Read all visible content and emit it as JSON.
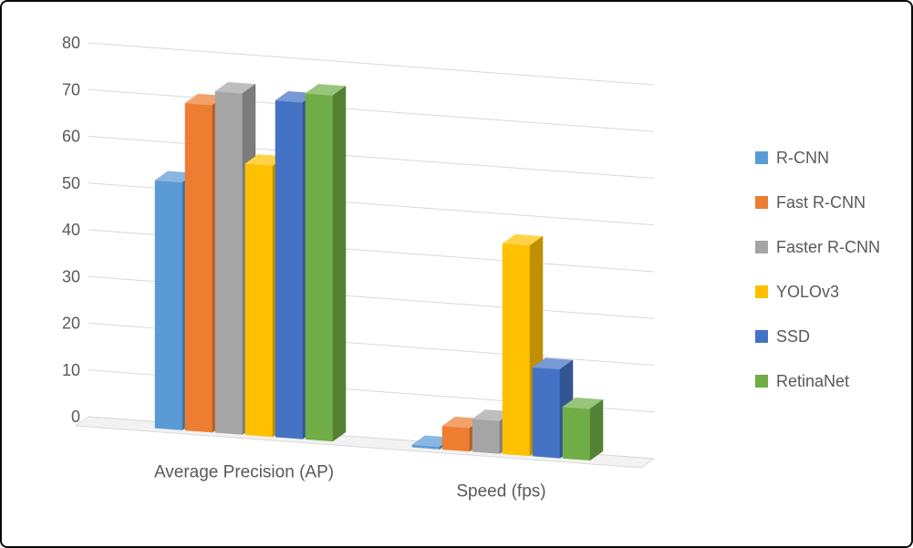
{
  "chart_data": {
    "type": "bar",
    "variant": "3d-clustered-column",
    "title": "",
    "categories": [
      "Average Precision (AP)",
      "Speed (fps)"
    ],
    "series": [
      {
        "name": "R-CNN",
        "color": "#5B9BD5",
        "values": [
          53,
          0.5
        ]
      },
      {
        "name": "Fast R-CNN",
        "color": "#ED7D31",
        "values": [
          70,
          5
        ]
      },
      {
        "name": "Faster R-CNN",
        "color": "#A5A5A5",
        "values": [
          73,
          7
        ]
      },
      {
        "name": "YOLOv3",
        "color": "#FFC000",
        "values": [
          58,
          45
        ]
      },
      {
        "name": "SSD",
        "color": "#4472C4",
        "values": [
          72,
          19
        ]
      },
      {
        "name": "RetinaNet",
        "color": "#70AD47",
        "values": [
          74,
          11
        ]
      }
    ],
    "xlabel": "",
    "ylabel": "",
    "ylim": [
      0,
      80
    ],
    "yticks": [
      0,
      10,
      20,
      30,
      40,
      50,
      60,
      70,
      80
    ],
    "grid": true,
    "legend_position": "right",
    "gridline_color": "#D9D9D9",
    "floor_fill": "#F2F2F2",
    "axis_text_color": "#595959"
  }
}
